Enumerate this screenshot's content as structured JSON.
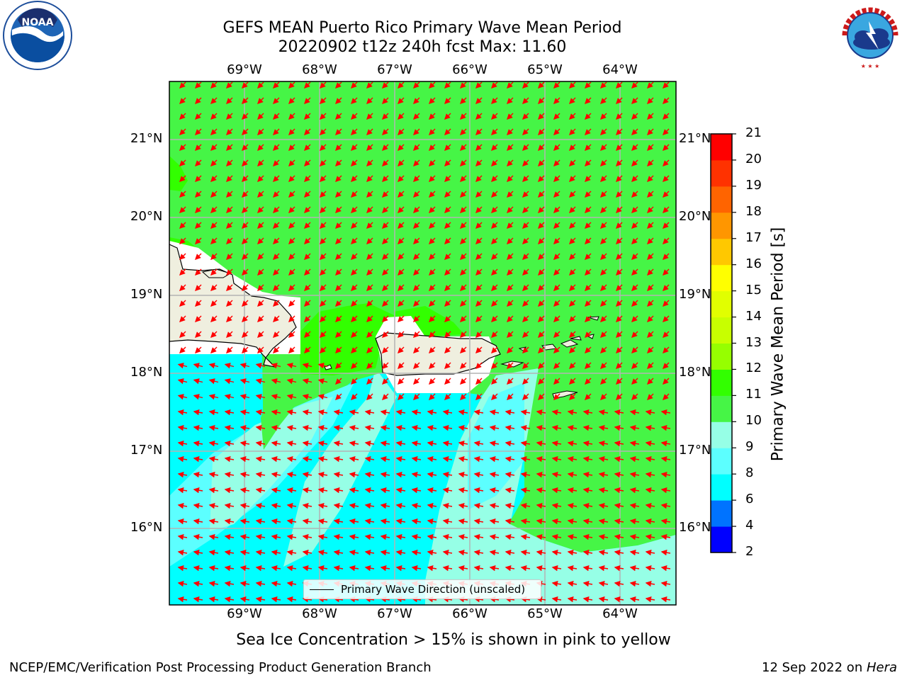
{
  "header": {
    "title_line1": "GEFS MEAN Puerto Rico Primary Wave Mean Period",
    "title_line2": "20220902 t12z 240h fcst   Max: 11.60"
  },
  "logos": {
    "left": {
      "name": "noaa-logo",
      "text": "NOAA"
    },
    "right": {
      "name": "nws-logo",
      "text": "NATIONAL WEATHER SERVICE"
    }
  },
  "map": {
    "lon_labels": [
      "69°W",
      "68°W",
      "67°W",
      "66°W",
      "65°W",
      "64°W"
    ],
    "lat_labels": [
      "21°N",
      "20°N",
      "19°N",
      "18°N",
      "17°N",
      "16°N"
    ],
    "legend_label": "Primary Wave Direction (unscaled)",
    "arrow_color": "#ff0000"
  },
  "colorbar": {
    "label": "Primary Wave Mean Period [s]",
    "ticks": [
      "2",
      "4",
      "6",
      "8",
      "9",
      "10",
      "11",
      "12",
      "13",
      "14",
      "15",
      "16",
      "17",
      "18",
      "19",
      "20",
      "21"
    ],
    "colors": [
      "#0000ff",
      "#0073ff",
      "#00ffff",
      "#5cffff",
      "#96ffe6",
      "#46f546",
      "#32ff00",
      "#96ff00",
      "#c8ff00",
      "#e1ff00",
      "#ffff00",
      "#ffc800",
      "#ff9600",
      "#ff6400",
      "#ff3200",
      "#ff0000"
    ]
  },
  "note": "Sea Ice Concentration > 15% is shown in pink to yellow",
  "footer": {
    "left": "NCEP/EMC/Verification Post Processing Product Generation Branch",
    "date": "12 Sep 2022 on ",
    "machine": "Hera"
  }
}
